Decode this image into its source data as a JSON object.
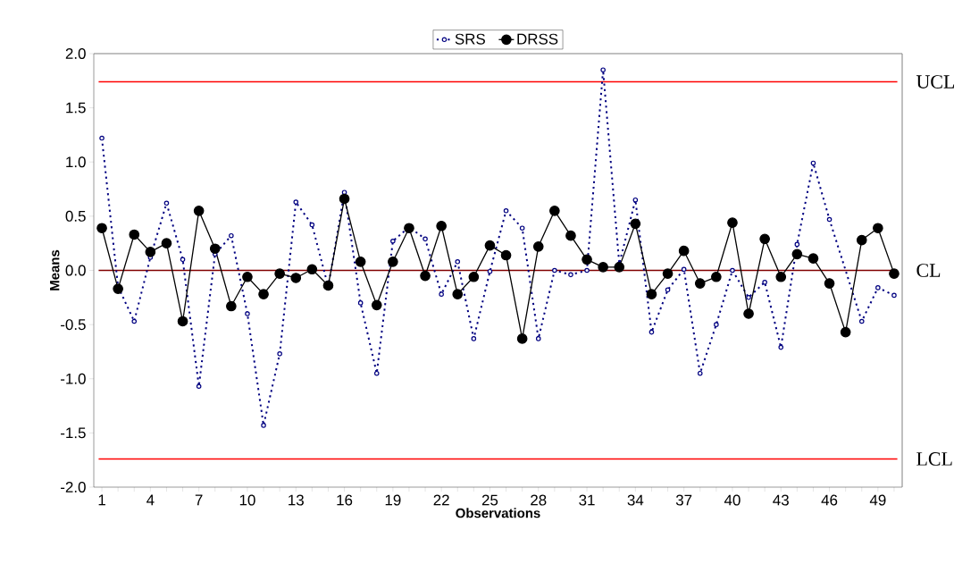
{
  "chart_data": {
    "type": "line",
    "xlabel": "Observations",
    "ylabel": "Means",
    "categories": [
      "1",
      null,
      null,
      "4",
      null,
      null,
      "7",
      null,
      null,
      "10",
      null,
      null,
      "13",
      null,
      null,
      "16",
      null,
      null,
      "19",
      null,
      null,
      "22",
      null,
      null,
      "25",
      null,
      null,
      "28",
      null,
      null,
      "31",
      null,
      null,
      "34",
      null,
      null,
      "37",
      null,
      null,
      "40",
      null,
      null,
      "43",
      null,
      null,
      "46",
      null,
      null,
      "49",
      null
    ],
    "series": [
      {
        "name": "SRS",
        "color": "#000080",
        "marker": "circle",
        "line_style": "dotted",
        "values": [
          1.22,
          -0.15,
          -0.47,
          0.12,
          0.62,
          0.1,
          -1.07,
          0.15,
          0.32,
          -0.4,
          -1.43,
          -0.77,
          0.63,
          0.42,
          -0.15,
          0.72,
          -0.3,
          -0.95,
          0.27,
          0.4,
          0.29,
          -0.22,
          0.08,
          -0.63,
          -0.01,
          0.55,
          0.39,
          -0.63,
          0.0,
          -0.04,
          0.0,
          1.85,
          0.06,
          0.65,
          -0.57,
          -0.18,
          0.01,
          -0.95,
          -0.5,
          0.0,
          -0.25,
          -0.11,
          -0.71,
          0.24,
          0.99,
          0.47,
          null,
          -0.47,
          -0.16,
          -0.23
        ]
      },
      {
        "name": "DRSS",
        "color": "#000000",
        "marker": "circle",
        "line_style": "solid",
        "values": [
          0.39,
          -0.17,
          0.33,
          0.17,
          0.25,
          -0.47,
          0.55,
          0.2,
          -0.33,
          -0.06,
          -0.22,
          -0.03,
          -0.07,
          0.01,
          -0.14,
          0.66,
          0.08,
          -0.32,
          0.08,
          0.39,
          -0.05,
          0.41,
          -0.22,
          -0.06,
          0.23,
          0.14,
          -0.63,
          0.22,
          0.55,
          0.32,
          0.1,
          0.03,
          0.03,
          0.43,
          -0.22,
          -0.03,
          0.18,
          -0.12,
          -0.06,
          0.44,
          -0.4,
          0.29,
          -0.06,
          0.15,
          0.11,
          -0.12,
          -0.57,
          0.28,
          0.39,
          -0.03
        ]
      }
    ],
    "ylim": [
      -2,
      2
    ],
    "yticks": [
      {
        "value": -2,
        "label": "-2.0"
      },
      {
        "value": -1.5,
        "label": "-1.5"
      },
      {
        "value": -1,
        "label": "-1.0"
      },
      {
        "value": -0.5,
        "label": "-0.5"
      },
      {
        "value": 0,
        "label": "0.0"
      },
      {
        "value": 0.5,
        "label": "0.5"
      },
      {
        "value": 1,
        "label": "1.0"
      },
      {
        "value": 1.5,
        "label": "1.5"
      },
      {
        "value": 2,
        "label": "2.0"
      }
    ],
    "ref_lines": [
      {
        "axis": "y",
        "value": 1.74,
        "label": "UCL",
        "color": "#ff0000"
      },
      {
        "axis": "y",
        "value": 0,
        "label": "CL",
        "color": "#800000"
      },
      {
        "axis": "y",
        "value": -1.74,
        "label": "LCL",
        "color": "#ff0000"
      }
    ],
    "grid": false,
    "legend": "top"
  }
}
